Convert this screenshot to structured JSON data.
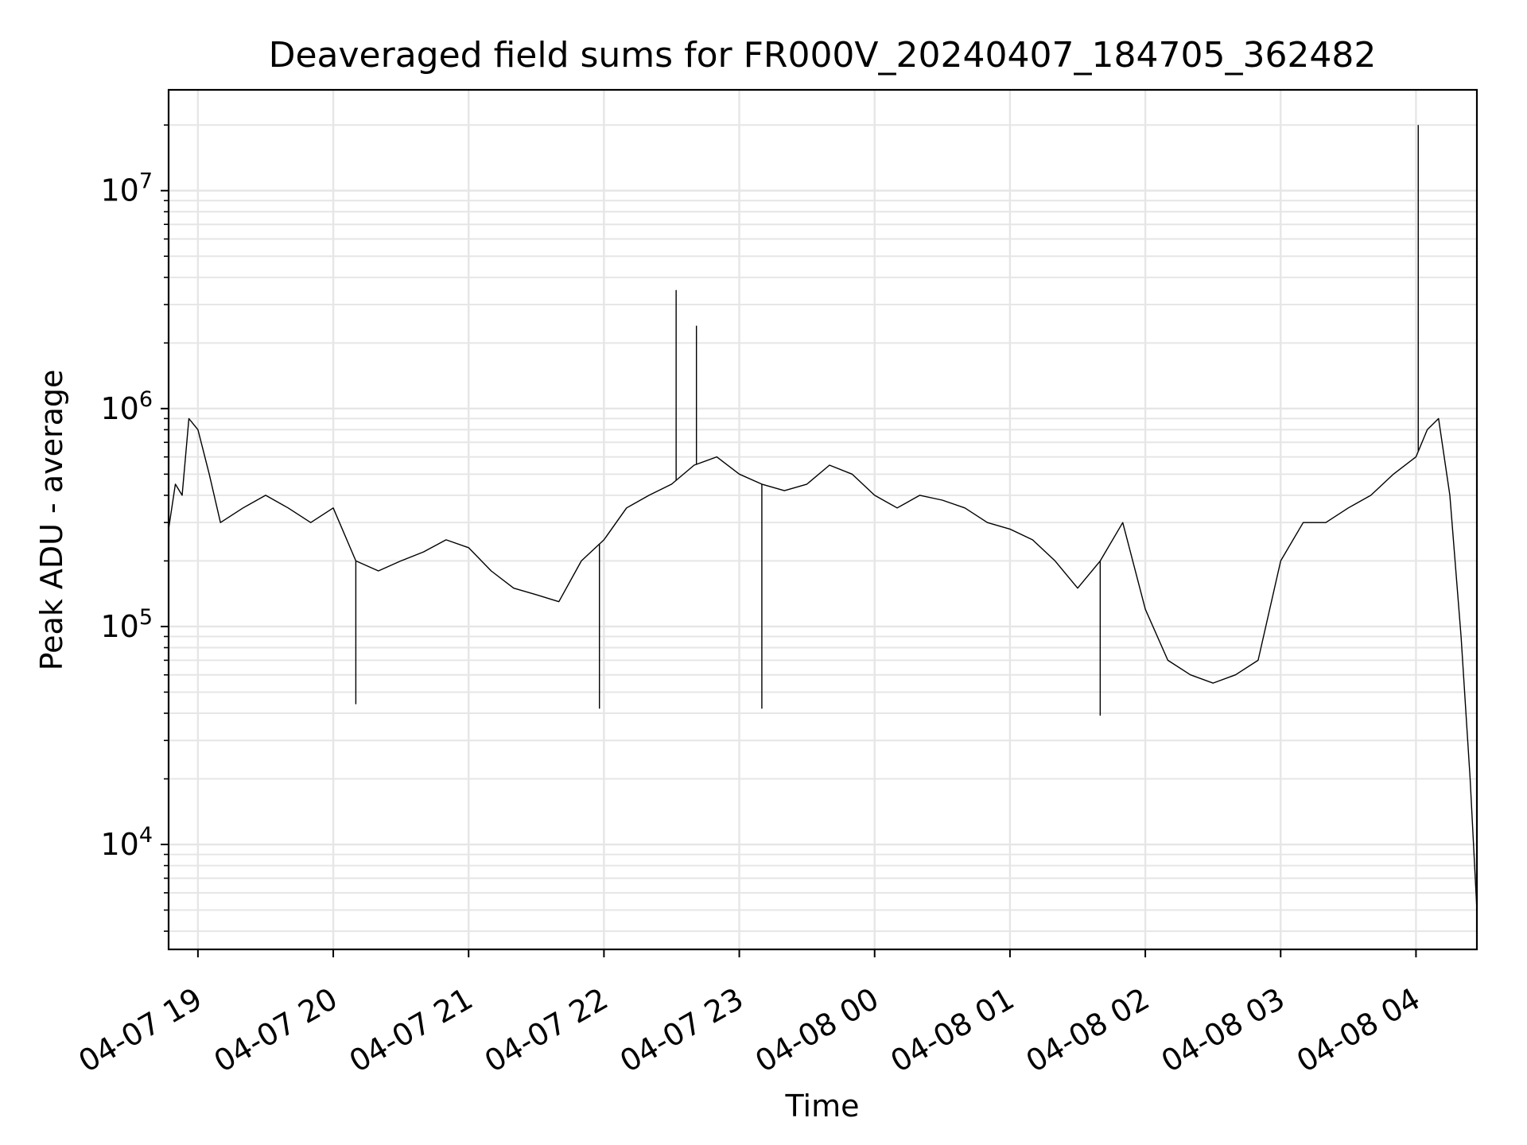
{
  "chart_data": {
    "type": "line",
    "title": "Deaveraged field sums for FR000V_20240407_184705_362482",
    "xlabel": "Time",
    "ylabel": "Peak ADU - average",
    "y_scale": "log",
    "ylim": [
      3300,
      29000000
    ],
    "xlim": [
      "2024-04-07 18:47",
      "2024-04-08 04:27"
    ],
    "x_ticks": [
      {
        "t": "2024-04-07 19:00",
        "label": "04-07 19"
      },
      {
        "t": "2024-04-07 20:00",
        "label": "04-07 20"
      },
      {
        "t": "2024-04-07 21:00",
        "label": "04-07 21"
      },
      {
        "t": "2024-04-07 22:00",
        "label": "04-07 22"
      },
      {
        "t": "2024-04-07 23:00",
        "label": "04-07 23"
      },
      {
        "t": "2024-04-08 00:00",
        "label": "04-08 00"
      },
      {
        "t": "2024-04-08 01:00",
        "label": "04-08 01"
      },
      {
        "t": "2024-04-08 02:00",
        "label": "04-08 02"
      },
      {
        "t": "2024-04-08 03:00",
        "label": "04-08 03"
      },
      {
        "t": "2024-04-08 04:00",
        "label": "04-08 04"
      }
    ],
    "y_ticks": [
      {
        "value": 10000,
        "base": "10",
        "exp": "4"
      },
      {
        "value": 100000,
        "base": "10",
        "exp": "5"
      },
      {
        "value": 1000000,
        "base": "10",
        "exp": "6"
      },
      {
        "value": 10000000,
        "base": "10",
        "exp": "7"
      }
    ],
    "grid": true,
    "line_color": "#000000",
    "grid_color": "#e6e6e6",
    "series": [
      {
        "name": "",
        "points": [
          [
            "2024-04-07 18:47",
            280000
          ],
          [
            "2024-04-07 18:50",
            450000
          ],
          [
            "2024-04-07 18:53",
            400000
          ],
          [
            "2024-04-07 18:56",
            900000
          ],
          [
            "2024-04-07 19:00",
            800000
          ],
          [
            "2024-04-07 19:05",
            500000
          ],
          [
            "2024-04-07 19:10",
            300000
          ],
          [
            "2024-04-07 19:20",
            350000
          ],
          [
            "2024-04-07 19:30",
            400000
          ],
          [
            "2024-04-07 19:40",
            350000
          ],
          [
            "2024-04-07 19:50",
            300000
          ],
          [
            "2024-04-07 20:00",
            350000
          ],
          [
            "2024-04-07 20:10",
            200000
          ],
          [
            "2024-04-07 20:20",
            180000
          ],
          [
            "2024-04-07 20:30",
            200000
          ],
          [
            "2024-04-07 20:40",
            220000
          ],
          [
            "2024-04-07 20:50",
            250000
          ],
          [
            "2024-04-07 21:00",
            230000
          ],
          [
            "2024-04-07 21:10",
            180000
          ],
          [
            "2024-04-07 21:20",
            150000
          ],
          [
            "2024-04-07 21:30",
            140000
          ],
          [
            "2024-04-07 21:40",
            130000
          ],
          [
            "2024-04-07 21:50",
            200000
          ],
          [
            "2024-04-07 22:00",
            250000
          ],
          [
            "2024-04-07 22:10",
            350000
          ],
          [
            "2024-04-07 22:20",
            400000
          ],
          [
            "2024-04-07 22:30",
            450000
          ],
          [
            "2024-04-07 22:40",
            550000
          ],
          [
            "2024-04-07 22:50",
            600000
          ],
          [
            "2024-04-07 23:00",
            500000
          ],
          [
            "2024-04-07 23:10",
            450000
          ],
          [
            "2024-04-07 23:20",
            420000
          ],
          [
            "2024-04-07 23:30",
            450000
          ],
          [
            "2024-04-07 23:40",
            550000
          ],
          [
            "2024-04-07 23:50",
            500000
          ],
          [
            "2024-04-08 00:00",
            400000
          ],
          [
            "2024-04-08 00:10",
            350000
          ],
          [
            "2024-04-08 00:20",
            400000
          ],
          [
            "2024-04-08 00:30",
            380000
          ],
          [
            "2024-04-08 00:40",
            350000
          ],
          [
            "2024-04-08 00:50",
            300000
          ],
          [
            "2024-04-08 01:00",
            280000
          ],
          [
            "2024-04-08 01:10",
            250000
          ],
          [
            "2024-04-08 01:20",
            200000
          ],
          [
            "2024-04-08 01:30",
            150000
          ],
          [
            "2024-04-08 01:40",
            200000
          ],
          [
            "2024-04-08 01:50",
            300000
          ],
          [
            "2024-04-08 02:00",
            120000
          ],
          [
            "2024-04-08 02:10",
            70000
          ],
          [
            "2024-04-08 02:20",
            60000
          ],
          [
            "2024-04-08 02:30",
            55000
          ],
          [
            "2024-04-08 02:40",
            60000
          ],
          [
            "2024-04-08 02:50",
            70000
          ],
          [
            "2024-04-08 03:00",
            200000
          ],
          [
            "2024-04-08 03:10",
            300000
          ],
          [
            "2024-04-08 03:20",
            300000
          ],
          [
            "2024-04-08 03:30",
            350000
          ],
          [
            "2024-04-08 03:40",
            400000
          ],
          [
            "2024-04-08 03:50",
            500000
          ],
          [
            "2024-04-08 04:00",
            600000
          ],
          [
            "2024-04-08 04:05",
            800000
          ],
          [
            "2024-04-08 04:10",
            900000
          ],
          [
            "2024-04-08 04:15",
            400000
          ],
          [
            "2024-04-08 04:20",
            90000
          ],
          [
            "2024-04-08 04:24",
            20000
          ],
          [
            "2024-04-08 04:27",
            5000
          ]
        ]
      }
    ],
    "annotations": [
      {
        "t": "2024-04-07 22:32",
        "value": 3500000
      },
      {
        "t": "2024-04-07 22:41",
        "value": 2400000
      },
      {
        "t": "2024-04-08 04:01",
        "value": 20000000
      },
      {
        "t": "2024-04-08 01:40",
        "value": 39000
      },
      {
        "t": "2024-04-07 20:10",
        "value": 44000
      },
      {
        "t": "2024-04-07 21:58",
        "value": 42000
      },
      {
        "t": "2024-04-07 23:10",
        "value": 42000
      }
    ]
  }
}
